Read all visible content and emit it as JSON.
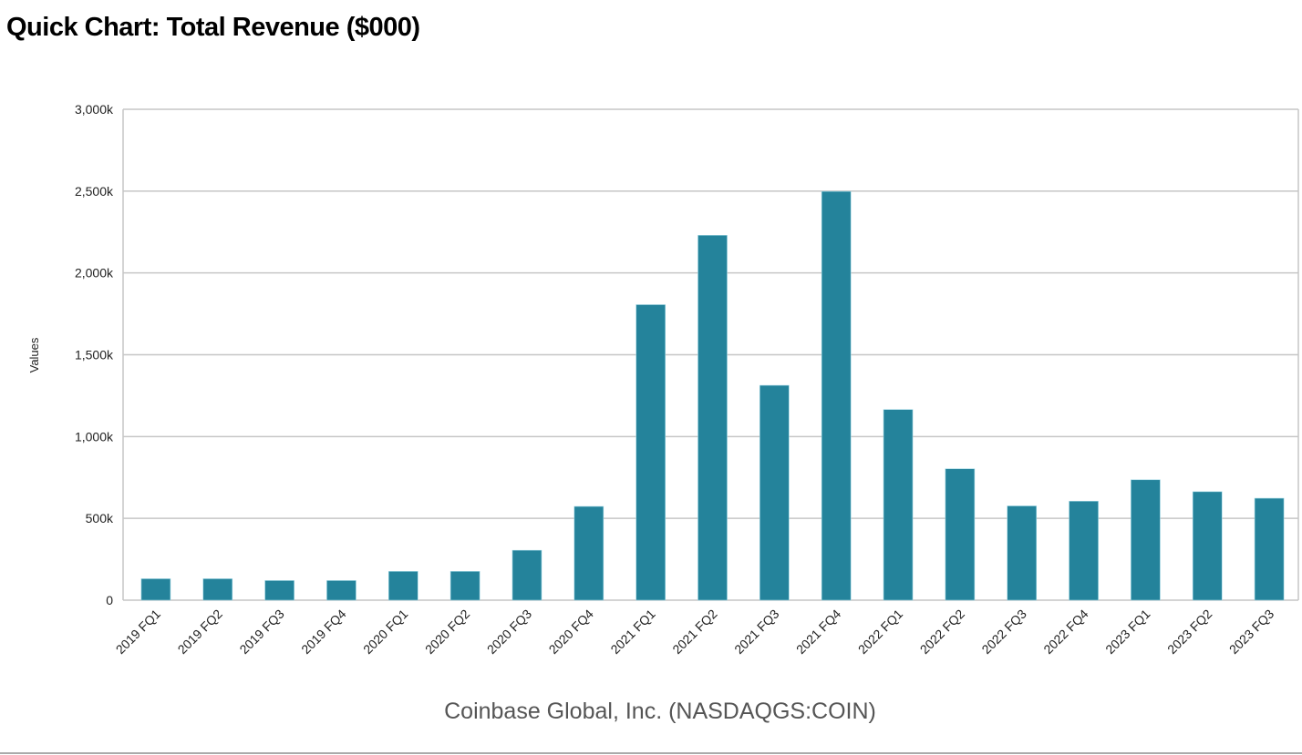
{
  "page": {
    "title": "Quick Chart: Total Revenue ($000)"
  },
  "chart_data": {
    "type": "bar",
    "title": "Quick Chart: Total Revenue ($000)",
    "ylabel": "Values",
    "xlabel": "",
    "caption": "Coinbase Global, Inc. (NASDAQGS:COIN)",
    "ylim": [
      0,
      3000
    ],
    "yunit": "k",
    "yticks": [
      0,
      500,
      1000,
      1500,
      2000,
      2500,
      3000
    ],
    "ytick_labels": [
      "0",
      "500k",
      "1,000k",
      "1,500k",
      "2,000k",
      "2,500k",
      "3,000k"
    ],
    "grid": true,
    "bar_color": "#24839b",
    "categories": [
      "2019 FQ1",
      "2019 FQ2",
      "2019 FQ3",
      "2019 FQ4",
      "2020 FQ1",
      "2020 FQ2",
      "2020 FQ3",
      "2020 FQ4",
      "2021 FQ1",
      "2021 FQ2",
      "2021 FQ3",
      "2021 FQ4",
      "2022 FQ1",
      "2022 FQ2",
      "2022 FQ3",
      "2022 FQ4",
      "2023 FQ1",
      "2023 FQ2",
      "2023 FQ3"
    ],
    "values": [
      131,
      131,
      120,
      120,
      176,
      176,
      305,
      573,
      1806,
      2230,
      1313,
      2498,
      1165,
      803,
      576,
      605,
      736,
      663,
      623
    ]
  }
}
